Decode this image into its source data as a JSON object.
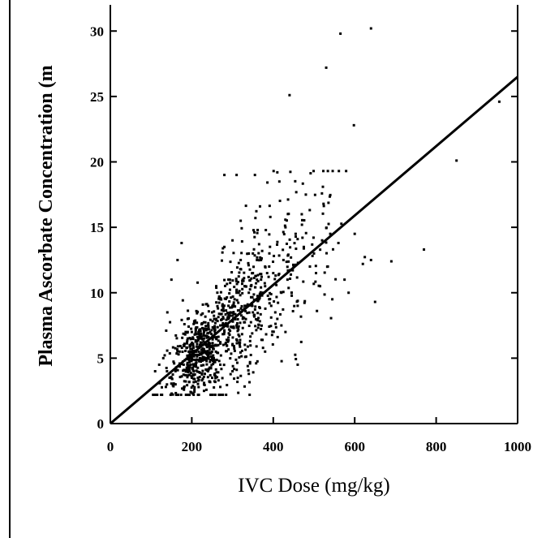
{
  "chart_data": {
    "type": "scatter",
    "title": "",
    "xlabel": "IVC Dose (mg/kg)",
    "ylabel": "Plasma Ascorbate Concentration (m",
    "xlim": [
      0,
      1000
    ],
    "ylim": [
      0,
      32
    ],
    "xticks": [
      0,
      200,
      400,
      600,
      800,
      1000
    ],
    "yticks": [
      0,
      5,
      10,
      15,
      20,
      25,
      30
    ],
    "x_tick_labels": [
      "0",
      "200",
      "400",
      "600",
      "800",
      "1000"
    ],
    "y_tick_labels": [
      "0",
      "5",
      "10",
      "15",
      "20",
      "25",
      "30"
    ],
    "grid": false,
    "legend": "none",
    "point_color": "#000000",
    "trendline": {
      "type": "linear",
      "x": [
        0,
        1000
      ],
      "y": [
        0,
        26.5
      ]
    },
    "cluster_description_note_removed": true,
    "points": {
      "x": [
        640,
        565,
        530,
        440,
        598,
        955,
        850,
        770,
        640,
        690,
        280,
        310,
        355,
        410,
        415,
        480,
        540,
        560,
        520,
        600,
        620,
        650,
        455,
        500,
        470,
        430,
        450,
        175,
        165,
        150,
        140,
        120,
        110,
        130,
        190,
        230,
        260,
        300,
        330,
        360,
        380,
        400,
        420,
        350,
        320,
        290,
        270,
        250,
        240,
        220,
        210,
        200,
        195,
        185,
        180,
        205,
        215,
        225,
        235,
        245,
        255,
        265,
        275,
        285,
        295,
        305,
        315,
        325,
        335,
        345,
        365,
        375,
        385,
        395,
        405,
        425,
        435,
        445,
        460,
        475,
        490,
        505,
        515,
        545,
        575,
        585,
        230,
        240,
        250,
        260,
        270,
        280,
        290,
        300,
        310,
        320,
        330,
        340,
        350,
        360,
        370,
        380,
        390,
        200,
        210,
        220,
        180,
        170,
        160,
        190,
        230,
        250,
        270,
        300,
        340,
        380,
        420,
        460,
        300,
        320,
        340,
        360,
        280,
        260,
        240,
        220,
        200,
        210,
        190,
        230,
        250,
        270,
        290,
        310,
        330,
        350,
        370,
        390,
        410,
        430
      ],
      "y": [
        30.2,
        29.8,
        27.2,
        25.1,
        22.8,
        24.6,
        20.1,
        13.3,
        12.5,
        12.4,
        19.0,
        19.0,
        19.0,
        19.2,
        18.5,
        17.5,
        14.5,
        13.8,
        14.0,
        14.5,
        12.2,
        9.3,
        14.5,
        13.0,
        16.0,
        15.0,
        12.0,
        13.8,
        12.5,
        11.0,
        8.5,
        4.5,
        4.0,
        5.0,
        6.5,
        7.0,
        8.0,
        9.0,
        10.5,
        11.0,
        12.0,
        11.5,
        10.0,
        13.0,
        12.5,
        11.0,
        9.5,
        8.5,
        7.5,
        6.0,
        5.5,
        5.0,
        6.0,
        7.0,
        4.5,
        4.0,
        3.5,
        6.5,
        5.0,
        7.0,
        8.0,
        6.0,
        9.0,
        7.5,
        8.5,
        9.5,
        10.0,
        11.0,
        9.0,
        10.5,
        9.5,
        10.0,
        11.5,
        9.0,
        8.5,
        12.5,
        11.0,
        10.0,
        9.0,
        13.5,
        12.0,
        11.5,
        10.5,
        9.5,
        11.0,
        10.0,
        3.0,
        4.0,
        5.5,
        6.5,
        4.5,
        7.0,
        8.0,
        6.0,
        7.5,
        8.5,
        9.0,
        10.0,
        8.5,
        9.5,
        11.0,
        10.5,
        12.0,
        3.5,
        4.5,
        5.0,
        6.0,
        5.5,
        3.0,
        7.0,
        2.5,
        3.5,
        2.8,
        4.0,
        3.8,
        5.5,
        7.5,
        4.5,
        14.0,
        15.5,
        13.0,
        12.5,
        13.5,
        10.5,
        9.0,
        6.5,
        7.0,
        5.5,
        8.0,
        6.5,
        5.0,
        7.5,
        9.0,
        10.0,
        10.5,
        11.5,
        12.5,
        9.5,
        8.0,
        7.0
      ]
    },
    "cluster_count": 900
  }
}
